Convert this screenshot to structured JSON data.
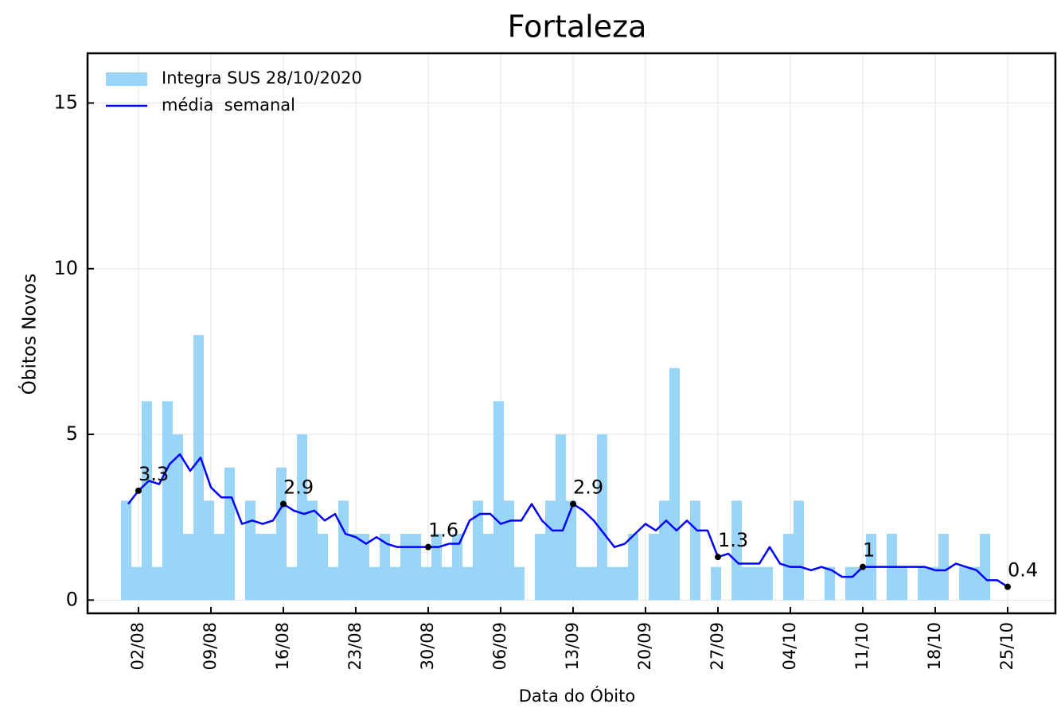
{
  "chart_data": {
    "type": "bar",
    "title": "Fortaleza",
    "xlabel": "Data do Óbito",
    "ylabel": "Óbitos Novos",
    "categories": [
      "01/08",
      "02/08",
      "03/08",
      "04/08",
      "05/08",
      "06/08",
      "07/08",
      "08/08",
      "09/08",
      "10/08",
      "11/08",
      "12/08",
      "13/08",
      "14/08",
      "15/08",
      "16/08",
      "17/08",
      "18/08",
      "19/08",
      "20/08",
      "21/08",
      "22/08",
      "23/08",
      "24/08",
      "25/08",
      "26/08",
      "27/08",
      "28/08",
      "29/08",
      "30/08",
      "31/08",
      "01/09",
      "02/09",
      "03/09",
      "04/09",
      "05/09",
      "06/09",
      "07/09",
      "08/09",
      "09/09",
      "10/09",
      "11/09",
      "12/09",
      "13/09",
      "14/09",
      "15/09",
      "16/09",
      "17/09",
      "18/09",
      "19/09",
      "20/09",
      "21/09",
      "22/09",
      "23/09",
      "24/09",
      "25/09",
      "26/09",
      "27/09",
      "28/09",
      "29/09",
      "30/09",
      "01/10",
      "02/10",
      "03/10",
      "04/10",
      "05/10",
      "06/10",
      "07/10",
      "08/10",
      "09/10",
      "10/10",
      "11/10",
      "12/10",
      "13/10",
      "14/10",
      "15/10",
      "16/10",
      "17/10",
      "18/10",
      "19/10",
      "20/10",
      "21/10",
      "22/10",
      "23/10",
      "24/10",
      "25/10"
    ],
    "series": [
      {
        "name": "Integra SUS 28/10/2020",
        "type": "bar",
        "color": "#99d5f9",
        "values": [
          3,
          1,
          6,
          1,
          6,
          5,
          2,
          8,
          3,
          2,
          4,
          0,
          3,
          2,
          2,
          4,
          1,
          5,
          3,
          2,
          1,
          3,
          2,
          2,
          1,
          2,
          1,
          2,
          2,
          1,
          2,
          1,
          2,
          1,
          3,
          2,
          6,
          3,
          1,
          0,
          2,
          3,
          5,
          3,
          1,
          1,
          5,
          1,
          1,
          2,
          0,
          2,
          3,
          7,
          0,
          3,
          0,
          1,
          0,
          3,
          1,
          1,
          1,
          0,
          2,
          3,
          0,
          0,
          1,
          0,
          1,
          1,
          2,
          0,
          2,
          1,
          0,
          1,
          1,
          2,
          0,
          1,
          1,
          2,
          0,
          0
        ]
      },
      {
        "name": "média  semanal",
        "type": "line",
        "color": "#0000ff",
        "values": [
          2.9,
          3.3,
          3.6,
          3.5,
          4.1,
          4.4,
          3.9,
          4.3,
          3.4,
          3.1,
          3.1,
          2.3,
          2.4,
          2.3,
          2.4,
          2.9,
          2.7,
          2.6,
          2.7,
          2.4,
          2.6,
          2.0,
          1.9,
          1.7,
          1.9,
          1.7,
          1.6,
          1.6,
          1.6,
          1.6,
          1.6,
          1.7,
          1.7,
          2.4,
          2.6,
          2.6,
          2.3,
          2.4,
          2.4,
          2.9,
          2.4,
          2.1,
          2.1,
          2.9,
          2.7,
          2.4,
          2.0,
          1.6,
          1.7,
          2.0,
          2.3,
          2.1,
          2.4,
          2.1,
          2.4,
          2.1,
          2.1,
          1.3,
          1.4,
          1.1,
          1.1,
          1.1,
          1.6,
          1.1,
          1.0,
          1.0,
          0.9,
          1.0,
          0.9,
          0.7,
          0.7,
          1.0,
          1.0,
          1.0,
          1.0,
          1.0,
          1.0,
          1.0,
          0.9,
          0.9,
          1.1,
          1.0,
          0.9,
          0.6,
          0.6,
          0.4
        ]
      }
    ],
    "annotations": [
      {
        "x": "02/08",
        "value": 3.3
      },
      {
        "x": "16/08",
        "value": 2.9
      },
      {
        "x": "30/08",
        "value": 1.6
      },
      {
        "x": "13/09",
        "value": 2.9
      },
      {
        "x": "27/09",
        "value": 1.3
      },
      {
        "x": "11/10",
        "value": 1.0
      },
      {
        "x": "25/10",
        "value": 0.4
      }
    ],
    "xticks": [
      "02/08",
      "09/08",
      "16/08",
      "23/08",
      "30/08",
      "06/09",
      "13/09",
      "20/09",
      "27/09",
      "04/10",
      "11/10",
      "18/10",
      "25/10"
    ],
    "ylim": [
      -0.4,
      16.5
    ],
    "yticks": [
      0,
      5,
      10,
      15
    ],
    "grid": true,
    "legend": "upper left"
  }
}
